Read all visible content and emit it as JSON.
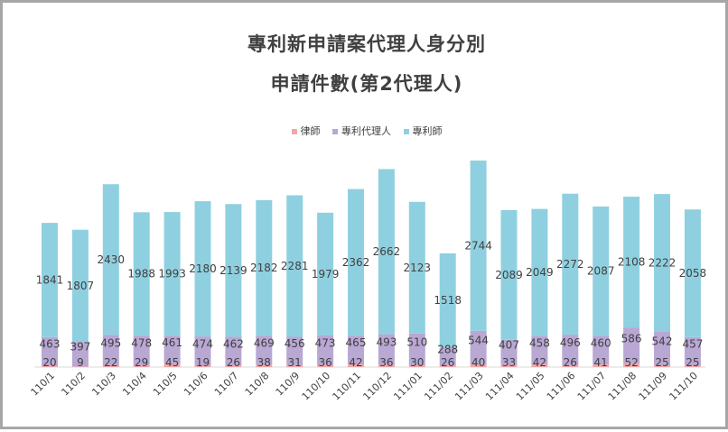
{
  "chart_data": {
    "type": "bar",
    "stacked": true,
    "title": "專利新申請案代理人身分別",
    "subtitle": "申請件數(第2代理人)",
    "categories": [
      "110/1",
      "110/2",
      "110/3",
      "110/4",
      "110/5",
      "110/6",
      "110/7",
      "110/8",
      "110/9",
      "110/10",
      "110/11",
      "110/12",
      "111/01",
      "111/02",
      "111/03",
      "111/04",
      "111/05",
      "111/06",
      "111/07",
      "111/08",
      "111/09",
      "111/10"
    ],
    "series": [
      {
        "name": "律師",
        "color": "#f4a6a6",
        "values": [
          20,
          9,
          22,
          29,
          45,
          19,
          26,
          38,
          31,
          36,
          42,
          36,
          30,
          26,
          40,
          33,
          42,
          26,
          41,
          52,
          25,
          25
        ]
      },
      {
        "name": "專利代理人",
        "color": "#b9a7d4",
        "values": [
          463,
          397,
          495,
          478,
          461,
          474,
          462,
          469,
          456,
          473,
          465,
          493,
          510,
          288,
          544,
          407,
          458,
          496,
          460,
          586,
          542,
          457
        ]
      },
      {
        "name": "專利師",
        "color": "#8fd0e0",
        "values": [
          1841,
          1807,
          2430,
          1988,
          1993,
          2180,
          2139,
          2182,
          2281,
          1979,
          2362,
          2662,
          2123,
          1518,
          2744,
          2089,
          2049,
          2272,
          2087,
          2108,
          2222,
          2058
        ]
      }
    ],
    "legend_position": "top",
    "grid": false,
    "ylim": [
      0,
      3600
    ]
  }
}
